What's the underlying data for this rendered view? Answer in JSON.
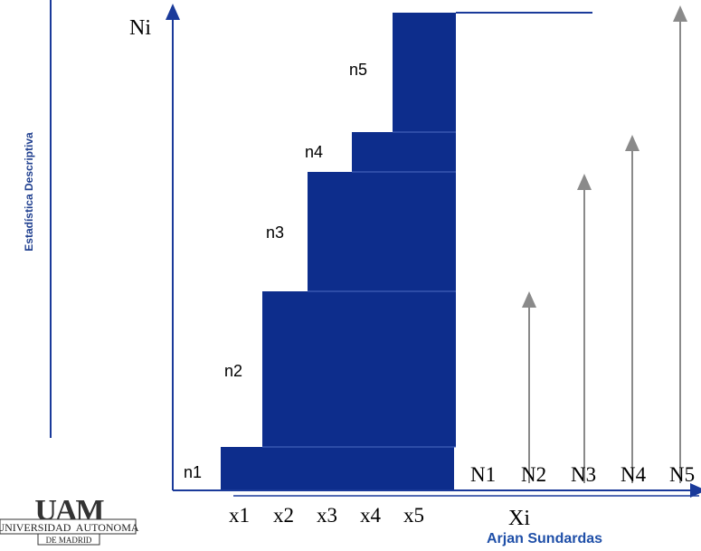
{
  "sidebar": {
    "title": "Estadística Descriptiva"
  },
  "chart": {
    "y_axis_label": "Ni",
    "x_axis_label": "Xi",
    "bar_labels": [
      "n1",
      "n2",
      "n3",
      "n4",
      "n5"
    ],
    "x_ticks": [
      "x1",
      "x2",
      "x3",
      "x4",
      "x5"
    ],
    "cumulative_labels": [
      "N1",
      "N2",
      "N3",
      "N4",
      "N5"
    ]
  },
  "footer": {
    "author": "Arjan Sundardas",
    "logo": {
      "mark": "UAM",
      "line1": "UNIVERSIDAD  AUTONOMA",
      "line2": "DE MADRID"
    }
  },
  "colors": {
    "bar_fill": "#0d2d8c",
    "axis": "#1a3a9a",
    "sidebar_text": "#1f3f8f",
    "author_text": "#1f4fa8",
    "arrow_gray": "#8a8a8a"
  }
}
